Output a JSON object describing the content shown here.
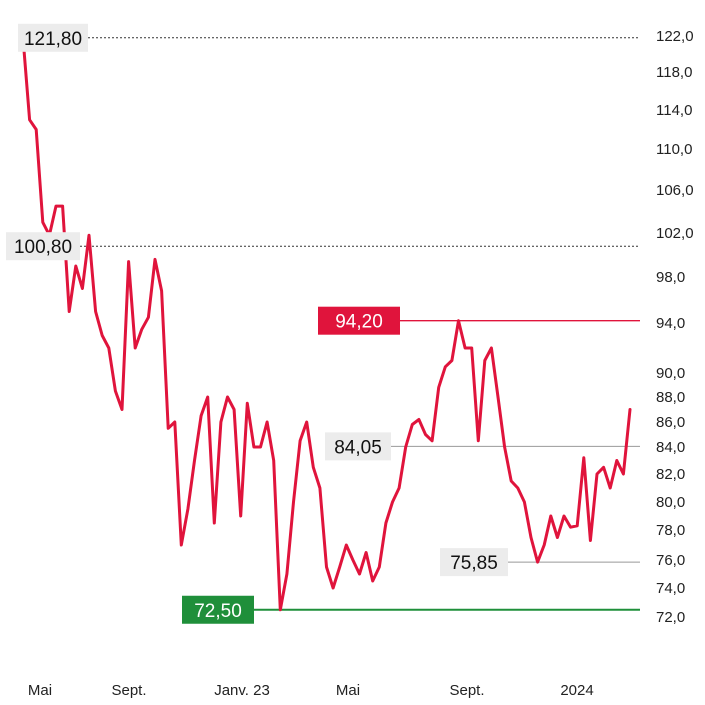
{
  "chart_data": {
    "type": "line",
    "title": "",
    "xlabel": "",
    "ylabel": "",
    "y_axis_position": "right",
    "grid": false,
    "y_ticks": [
      "122,0",
      "118,0",
      "114,0",
      "110,0",
      "106,0",
      "102,0",
      "98,0",
      "94,0",
      "90,0",
      "88,0",
      "86,0",
      "84,0",
      "82,0",
      "80,0",
      "78,0",
      "76,0",
      "74,0",
      "72,0"
    ],
    "x_ticks": [
      "Mai",
      "Sept.",
      "Janv. 23",
      "Mai",
      "Sept.",
      "2024"
    ],
    "colors": {
      "line": "#e0143c",
      "high": "#e0143c",
      "low": "#1f8f3a",
      "label_bg": "#ececec",
      "reference": "#333333"
    },
    "annotations": [
      {
        "label": "121,80",
        "value": 121.8,
        "kind": "reference"
      },
      {
        "label": "100,80",
        "value": 100.8,
        "kind": "reference"
      },
      {
        "label": "94,20",
        "value": 94.2,
        "kind": "high"
      },
      {
        "label": "84,05",
        "value": 84.05,
        "kind": "reference"
      },
      {
        "label": "75,85",
        "value": 75.85,
        "kind": "reference"
      },
      {
        "label": "72,50",
        "value": 72.5,
        "kind": "low"
      }
    ],
    "series": [
      {
        "values": [
          121.8,
          113.0,
          112.0,
          103.0,
          101.8,
          104.5,
          104.5,
          95.0,
          99.0,
          97.0,
          101.8,
          95.0,
          93.0,
          92.0,
          88.5,
          87.0,
          99.4,
          92.0,
          93.5,
          94.5,
          99.6,
          96.8,
          85.5,
          86.0,
          77.0,
          79.5,
          83.0,
          86.5,
          88.0,
          78.5,
          86.0,
          88.0,
          87.0,
          79.0,
          87.5,
          84.0,
          84.0,
          86.0,
          83.0,
          72.5,
          75.0,
          80.0,
          84.5,
          86.0,
          82.5,
          81.0,
          75.5,
          74.0,
          75.5,
          77.0,
          76.0,
          75.0,
          76.5,
          74.5,
          75.5,
          78.5,
          80.0,
          81.0,
          84.0,
          85.8,
          86.2,
          85.0,
          84.5,
          88.8,
          90.5,
          91.0,
          94.2,
          92.0,
          92.0,
          84.5,
          91.0,
          92.0,
          88.0,
          84.0,
          81.5,
          81.0,
          80.0,
          77.5,
          75.85,
          77.0,
          79.0,
          77.5,
          79.0,
          78.2,
          78.3,
          83.2,
          77.3,
          82.0,
          82.5,
          81.0,
          83.0,
          82.0,
          87.0
        ]
      }
    ]
  }
}
